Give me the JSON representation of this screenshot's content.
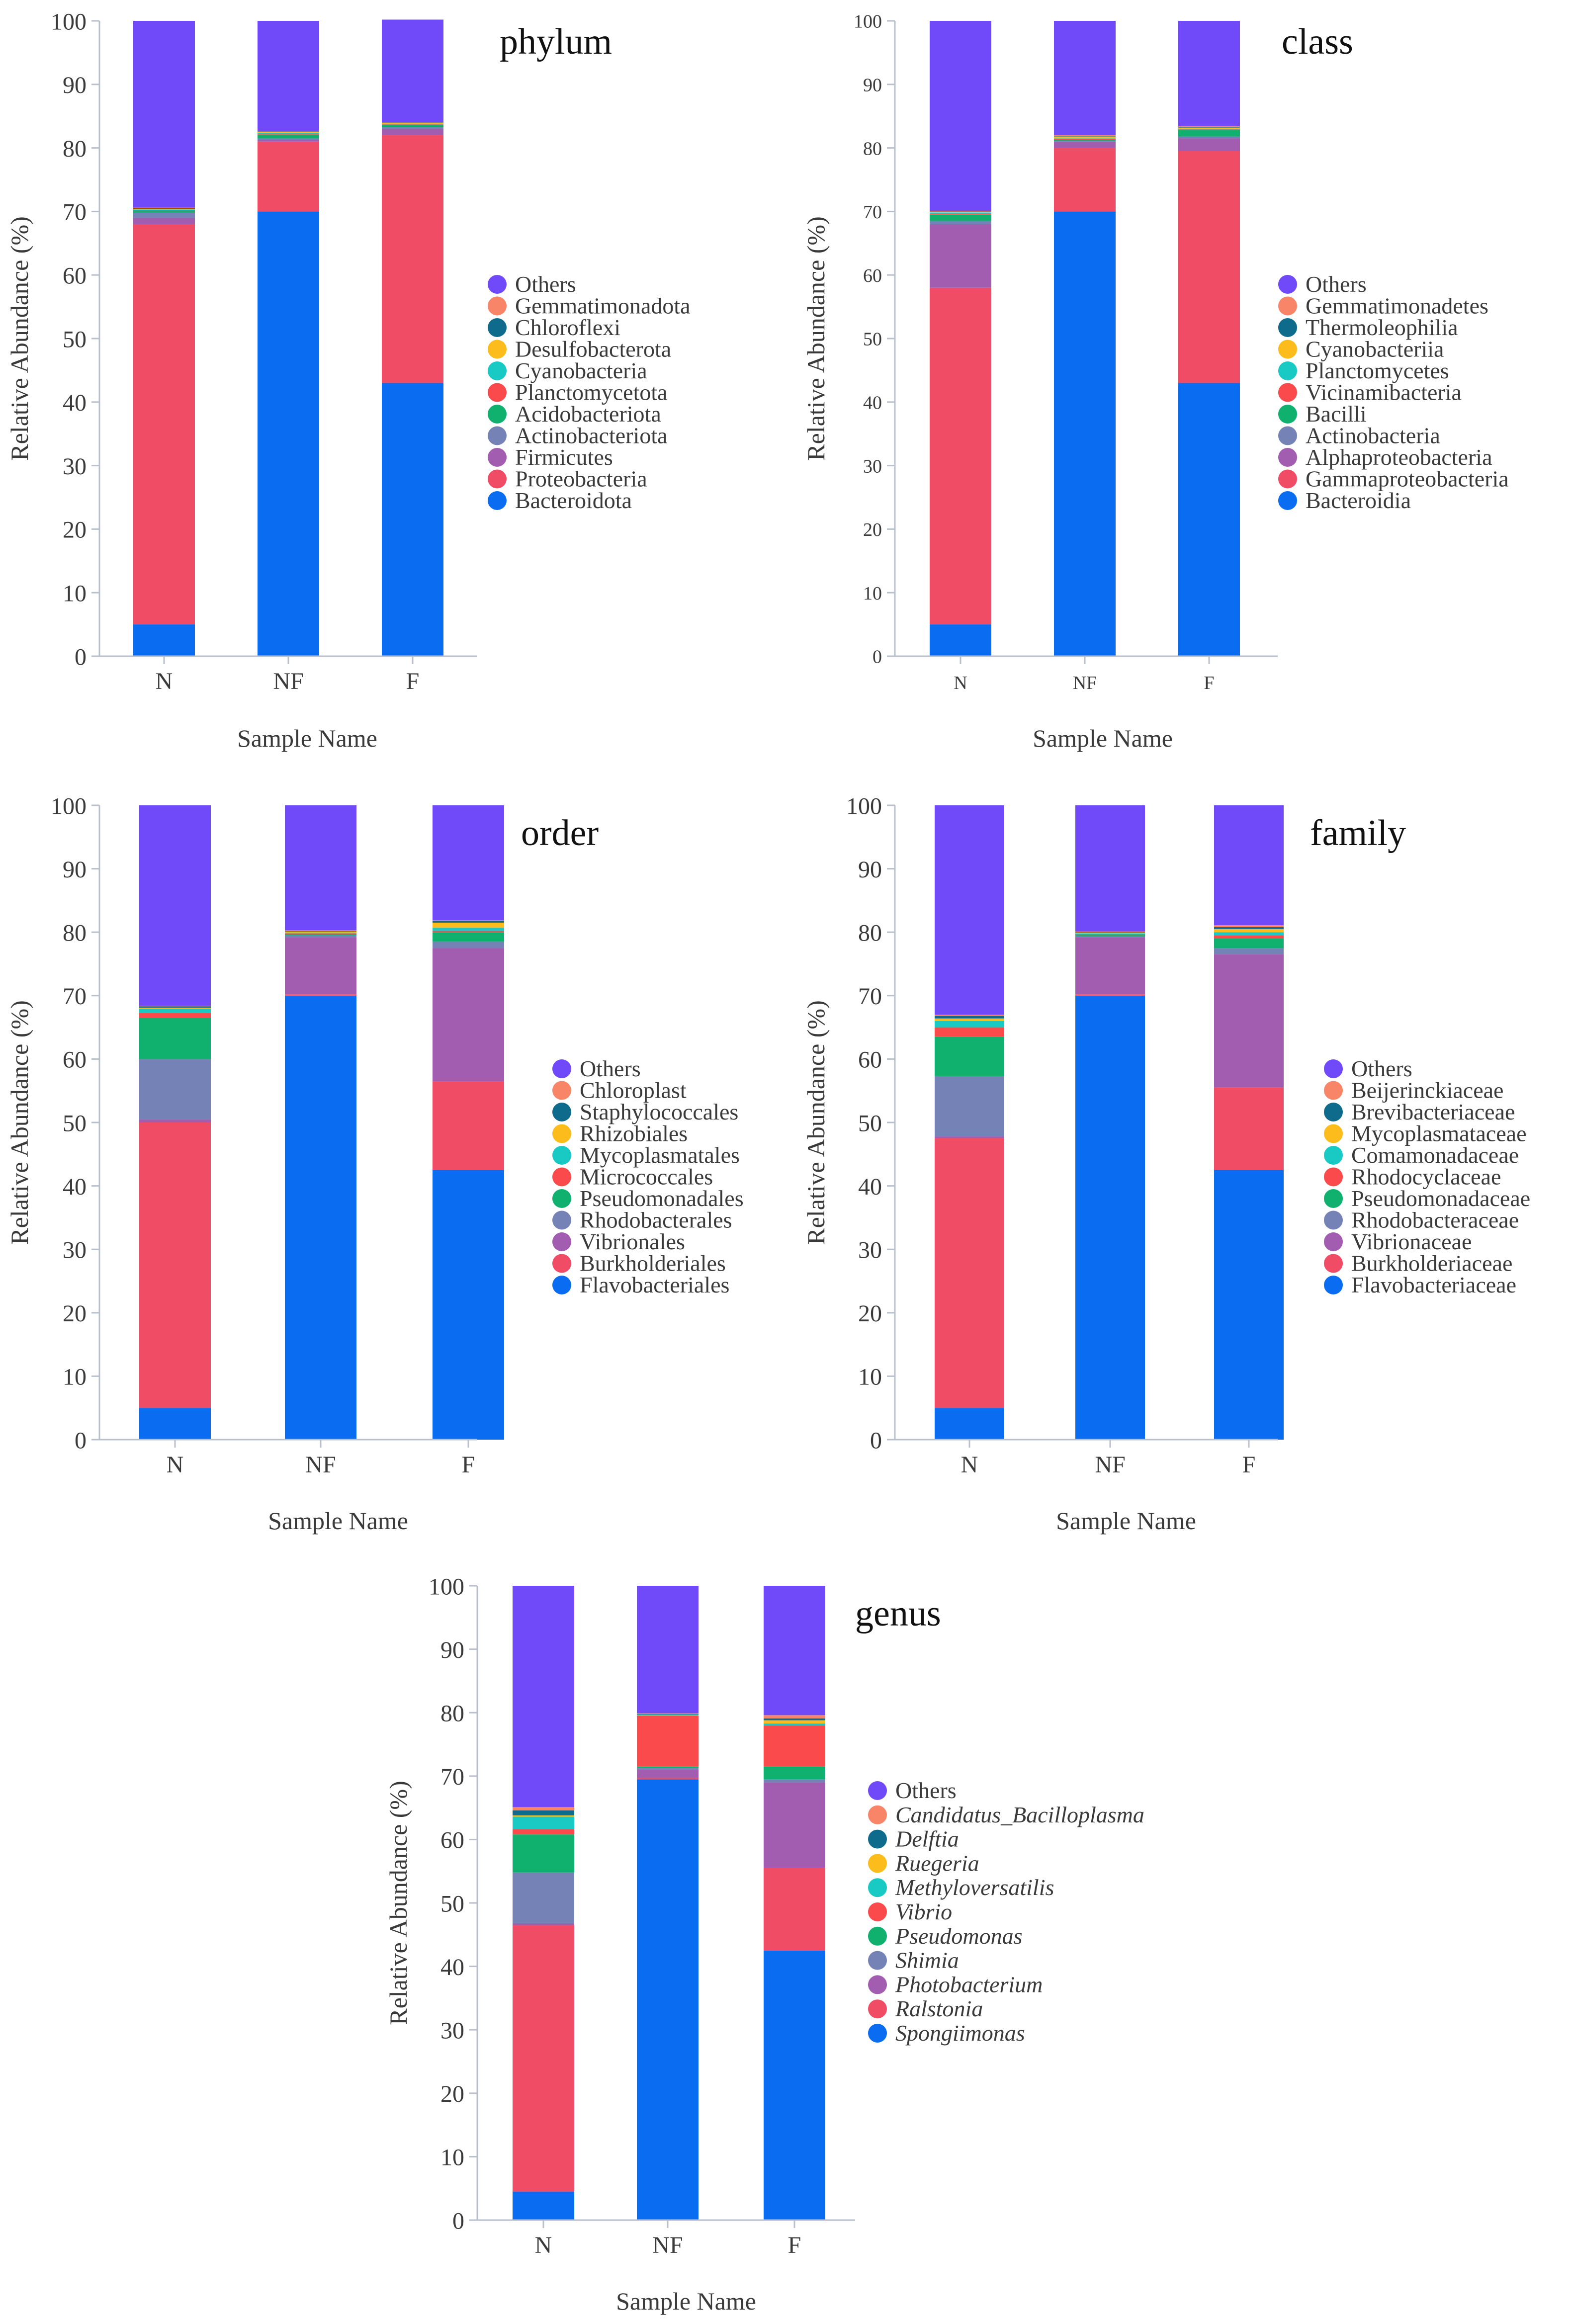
{
  "figure": {
    "colors": {
      "series": [
        "#0a6cf0",
        "#f04c66",
        "#a25cb0",
        "#7482b6",
        "#10b06f",
        "#fa4a4c",
        "#19c9c4",
        "#fcbd1c",
        "#0f6b8c",
        "#f88568",
        "#7049f8"
      ]
    }
  },
  "chart_data": [
    {
      "type": "bar",
      "stacked": true,
      "title": "phylum",
      "xlabel": "Sample Name",
      "ylabel": "Relative Abundance (%)",
      "ylim": [
        0,
        100
      ],
      "yticks": [
        "0",
        "10",
        "20",
        "30",
        "40",
        "50",
        "60",
        "70",
        "80",
        "90",
        "100"
      ],
      "categories": [
        "N",
        "NF",
        "F"
      ],
      "series": [
        {
          "name": "Bacteroidota",
          "values": [
            5.0,
            70.0,
            43.0
          ]
        },
        {
          "name": "Proteobacteria",
          "values": [
            63.0,
            11.0,
            39.0
          ]
        },
        {
          "name": "Firmicutes",
          "values": [
            1.0,
            0.3,
            1.0
          ]
        },
        {
          "name": "Actinobacteriota",
          "values": [
            0.8,
            0.2,
            0.3
          ]
        },
        {
          "name": "Acidobacteriota",
          "values": [
            0.3,
            0.6,
            0.3
          ]
        },
        {
          "name": "Planctomycetota",
          "values": [
            0.1,
            0.1,
            0.1
          ]
        },
        {
          "name": "Cyanobacteria",
          "values": [
            0.1,
            0.2,
            0.1
          ]
        },
        {
          "name": "Desulfobacterota",
          "values": [
            0.1,
            0.1,
            0.1
          ]
        },
        {
          "name": "Chloroflexi",
          "values": [
            0.1,
            0.1,
            0.1
          ]
        },
        {
          "name": "Gemmatimonadota",
          "values": [
            0.1,
            0.1,
            0.1
          ]
        },
        {
          "name": "Others",
          "values": [
            29.4,
            17.3,
            16.1
          ]
        }
      ]
    },
    {
      "type": "bar",
      "stacked": true,
      "title": "class",
      "xlabel": "Sample Name",
      "ylabel": "Relative Abundance (%)",
      "ylim": [
        0,
        100
      ],
      "yticks": [
        "0",
        "10",
        "20",
        "30",
        "40",
        "50",
        "60",
        "70",
        "80",
        "90",
        "100"
      ],
      "categories": [
        "N",
        "NF",
        "F"
      ],
      "series": [
        {
          "name": "Bacteroidia",
          "values": [
            5.0,
            70.0,
            43.0
          ]
        },
        {
          "name": "Gammaproteobacteria",
          "values": [
            53.0,
            10.0,
            36.5
          ]
        },
        {
          "name": "Alphaproteobacteria",
          "values": [
            10.0,
            1.0,
            2.0
          ]
        },
        {
          "name": "Actinobacteria",
          "values": [
            0.5,
            0.1,
            0.3
          ]
        },
        {
          "name": "Bacilli",
          "values": [
            1.0,
            0.2,
            1.0
          ]
        },
        {
          "name": "Vicinamibacteria",
          "values": [
            0.2,
            0.1,
            0.1
          ]
        },
        {
          "name": "Planctomycetes",
          "values": [
            0.1,
            0.1,
            0.1
          ]
        },
        {
          "name": "Cyanobacteriia",
          "values": [
            0.1,
            0.3,
            0.2
          ]
        },
        {
          "name": "Thermoleophilia",
          "values": [
            0.1,
            0.1,
            0.1
          ]
        },
        {
          "name": "Gemmatimonadetes",
          "values": [
            0.1,
            0.1,
            0.1
          ]
        },
        {
          "name": "Others",
          "values": [
            29.9,
            18.0,
            16.6
          ]
        }
      ]
    },
    {
      "type": "bar",
      "stacked": true,
      "title": "order",
      "xlabel": "Sample Name",
      "ylabel": "Relative Abundance (%)",
      "ylim": [
        0,
        100
      ],
      "yticks": [
        "0",
        "10",
        "20",
        "30",
        "40",
        "50",
        "60",
        "70",
        "80",
        "90",
        "100"
      ],
      "categories": [
        "N",
        "NF",
        "F"
      ],
      "series": [
        {
          "name": "Flavobacteriales",
          "values": [
            5.0,
            70.0,
            42.5
          ]
        },
        {
          "name": "Burkholderiales",
          "values": [
            45.0,
            0.2,
            14.0
          ]
        },
        {
          "name": "Vibrionales",
          "values": [
            0.5,
            9.0,
            21.0
          ]
        },
        {
          "name": "Rhodobacterales",
          "values": [
            9.5,
            0.3,
            1.0
          ]
        },
        {
          "name": "Pseudomonadales",
          "values": [
            6.5,
            0.2,
            1.5
          ]
        },
        {
          "name": "Micrococcales",
          "values": [
            0.8,
            0.1,
            0.2
          ]
        },
        {
          "name": "Mycoplasmatales",
          "values": [
            0.6,
            0.1,
            0.5
          ]
        },
        {
          "name": "Rhizobiales",
          "values": [
            0.2,
            0.2,
            0.8
          ]
        },
        {
          "name": "Staphylococcales",
          "values": [
            0.2,
            0.1,
            0.3
          ]
        },
        {
          "name": "Chloroplast",
          "values": [
            0.1,
            0.1,
            0.1
          ]
        },
        {
          "name": "Others",
          "values": [
            31.6,
            19.7,
            18.1
          ]
        }
      ]
    },
    {
      "type": "bar",
      "stacked": true,
      "title": "family",
      "xlabel": "Sample Name",
      "ylabel": "Relative Abundance (%)",
      "ylim": [
        0,
        100
      ],
      "yticks": [
        "0",
        "10",
        "20",
        "30",
        "40",
        "50",
        "60",
        "70",
        "80",
        "90",
        "100"
      ],
      "categories": [
        "N",
        "NF",
        "F"
      ],
      "series": [
        {
          "name": "Flavobacteriaceae",
          "values": [
            5.0,
            70.0,
            42.5
          ]
        },
        {
          "name": "Burkholderiaceae",
          "values": [
            42.5,
            0.2,
            13.0
          ]
        },
        {
          "name": "Vibrionaceae",
          "values": [
            0.3,
            9.0,
            21.0
          ]
        },
        {
          "name": "Rhodobacteraceae",
          "values": [
            9.5,
            0.2,
            1.0
          ]
        },
        {
          "name": "Pseudomonadaceae",
          "values": [
            6.2,
            0.2,
            1.5
          ]
        },
        {
          "name": "Rhodocyclaceae",
          "values": [
            1.5,
            0.1,
            0.5
          ]
        },
        {
          "name": "Comamonadaceae",
          "values": [
            1.0,
            0.1,
            0.5
          ]
        },
        {
          "name": "Mycoplasmataceae",
          "values": [
            0.4,
            0.1,
            0.5
          ]
        },
        {
          "name": "Brevibacteriaceae",
          "values": [
            0.4,
            0.1,
            0.3
          ]
        },
        {
          "name": "Beijerinckiaceae",
          "values": [
            0.2,
            0.1,
            0.3
          ]
        },
        {
          "name": "Others",
          "values": [
            33.0,
            19.9,
            18.9
          ]
        }
      ]
    },
    {
      "type": "bar",
      "stacked": true,
      "title": "genus",
      "xlabel": "Sample Name",
      "ylabel": "Relative Abundance (%)",
      "ylim": [
        0,
        100
      ],
      "yticks": [
        "0",
        "10",
        "20",
        "30",
        "40",
        "50",
        "60",
        "70",
        "80",
        "90",
        "100"
      ],
      "categories": [
        "N",
        "NF",
        "F"
      ],
      "italic_legend": true,
      "series": [
        {
          "name": "Spongiimonas",
          "values": [
            4.5,
            69.5,
            42.5
          ]
        },
        {
          "name": "Ralstonia",
          "values": [
            42.0,
            0.2,
            13.0
          ]
        },
        {
          "name": "Photobacterium",
          "values": [
            0.3,
            1.3,
            13.5
          ]
        },
        {
          "name": "Shimia",
          "values": [
            8.0,
            0.3,
            0.5
          ]
        },
        {
          "name": "Pseudomonas",
          "values": [
            6.0,
            0.2,
            2.0
          ]
        },
        {
          "name": "Vibrio",
          "values": [
            0.8,
            8.0,
            6.5
          ]
        },
        {
          "name": "Methyloversatilis",
          "values": [
            2.0,
            0.1,
            0.3
          ]
        },
        {
          "name": "Ruegeria",
          "values": [
            0.2,
            0.1,
            0.5
          ]
        },
        {
          "name": "Delftia",
          "values": [
            0.8,
            0.1,
            0.3
          ]
        },
        {
          "name": "Candidatus_Bacilloplasma",
          "values": [
            0.5,
            0.1,
            0.5
          ]
        },
        {
          "name": "Others",
          "values": [
            34.9,
            20.1,
            20.4
          ]
        }
      ]
    }
  ]
}
